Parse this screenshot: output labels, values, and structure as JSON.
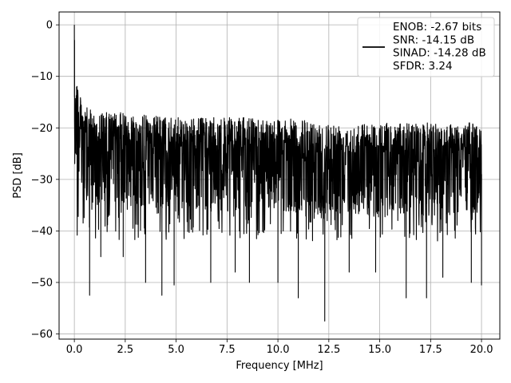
{
  "chart_data": {
    "type": "line",
    "title": "",
    "xlabel": "Frequency [MHz]",
    "ylabel": "PSD [dB]",
    "xlim": [
      -0.75,
      20.9
    ],
    "ylim": [
      -61,
      2.5
    ],
    "x_ticks": [
      0.0,
      2.5,
      5.0,
      7.5,
      10.0,
      12.5,
      15.0,
      17.5,
      20.0
    ],
    "x_tick_labels": [
      "0.0",
      "2.5",
      "5.0",
      "7.5",
      "10.0",
      "12.5",
      "15.0",
      "17.5",
      "20.0"
    ],
    "y_ticks": [
      0,
      -10,
      -20,
      -30,
      -40,
      -50,
      -60
    ],
    "y_tick_labels": [
      "0",
      "−10",
      "−20",
      "−30",
      "−40",
      "−50",
      "−60"
    ],
    "grid": true,
    "legend_position": "top-right",
    "series": [
      {
        "name": "ENOB: -2.67 bits\nSNR: -14.15 dB\nSINAD: -14.28 dB\nSFDR: 3.24",
        "color": "#000000",
        "x_range": [
          0,
          20
        ],
        "peak": {
          "x": 0.0,
          "y": 0.0
        },
        "upper_envelope_points": [
          [
            0.1,
            -9
          ],
          [
            0.3,
            -14
          ],
          [
            0.6,
            -16
          ],
          [
            1.0,
            -17
          ],
          [
            2.5,
            -17
          ],
          [
            5.0,
            -18
          ],
          [
            7.5,
            -18
          ],
          [
            10.0,
            -18
          ],
          [
            12.5,
            -19
          ],
          [
            15.0,
            -19
          ],
          [
            17.5,
            -19
          ],
          [
            20.0,
            -19
          ]
        ],
        "typical_floor": -33,
        "deep_nulls": [
          [
            0.75,
            -52.5
          ],
          [
            1.3,
            -45
          ],
          [
            2.4,
            -45
          ],
          [
            3.5,
            -50
          ],
          [
            4.3,
            -52.5
          ],
          [
            4.9,
            -50.5
          ],
          [
            6.7,
            -50
          ],
          [
            7.9,
            -48
          ],
          [
            8.6,
            -50
          ],
          [
            10.0,
            -50
          ],
          [
            11.0,
            -53
          ],
          [
            12.3,
            -57.5
          ],
          [
            13.5,
            -48
          ],
          [
            14.8,
            -48
          ],
          [
            16.3,
            -53
          ],
          [
            17.3,
            -53
          ],
          [
            18.1,
            -49
          ],
          [
            19.5,
            -50
          ],
          [
            20.0,
            -50.5
          ]
        ]
      }
    ]
  }
}
